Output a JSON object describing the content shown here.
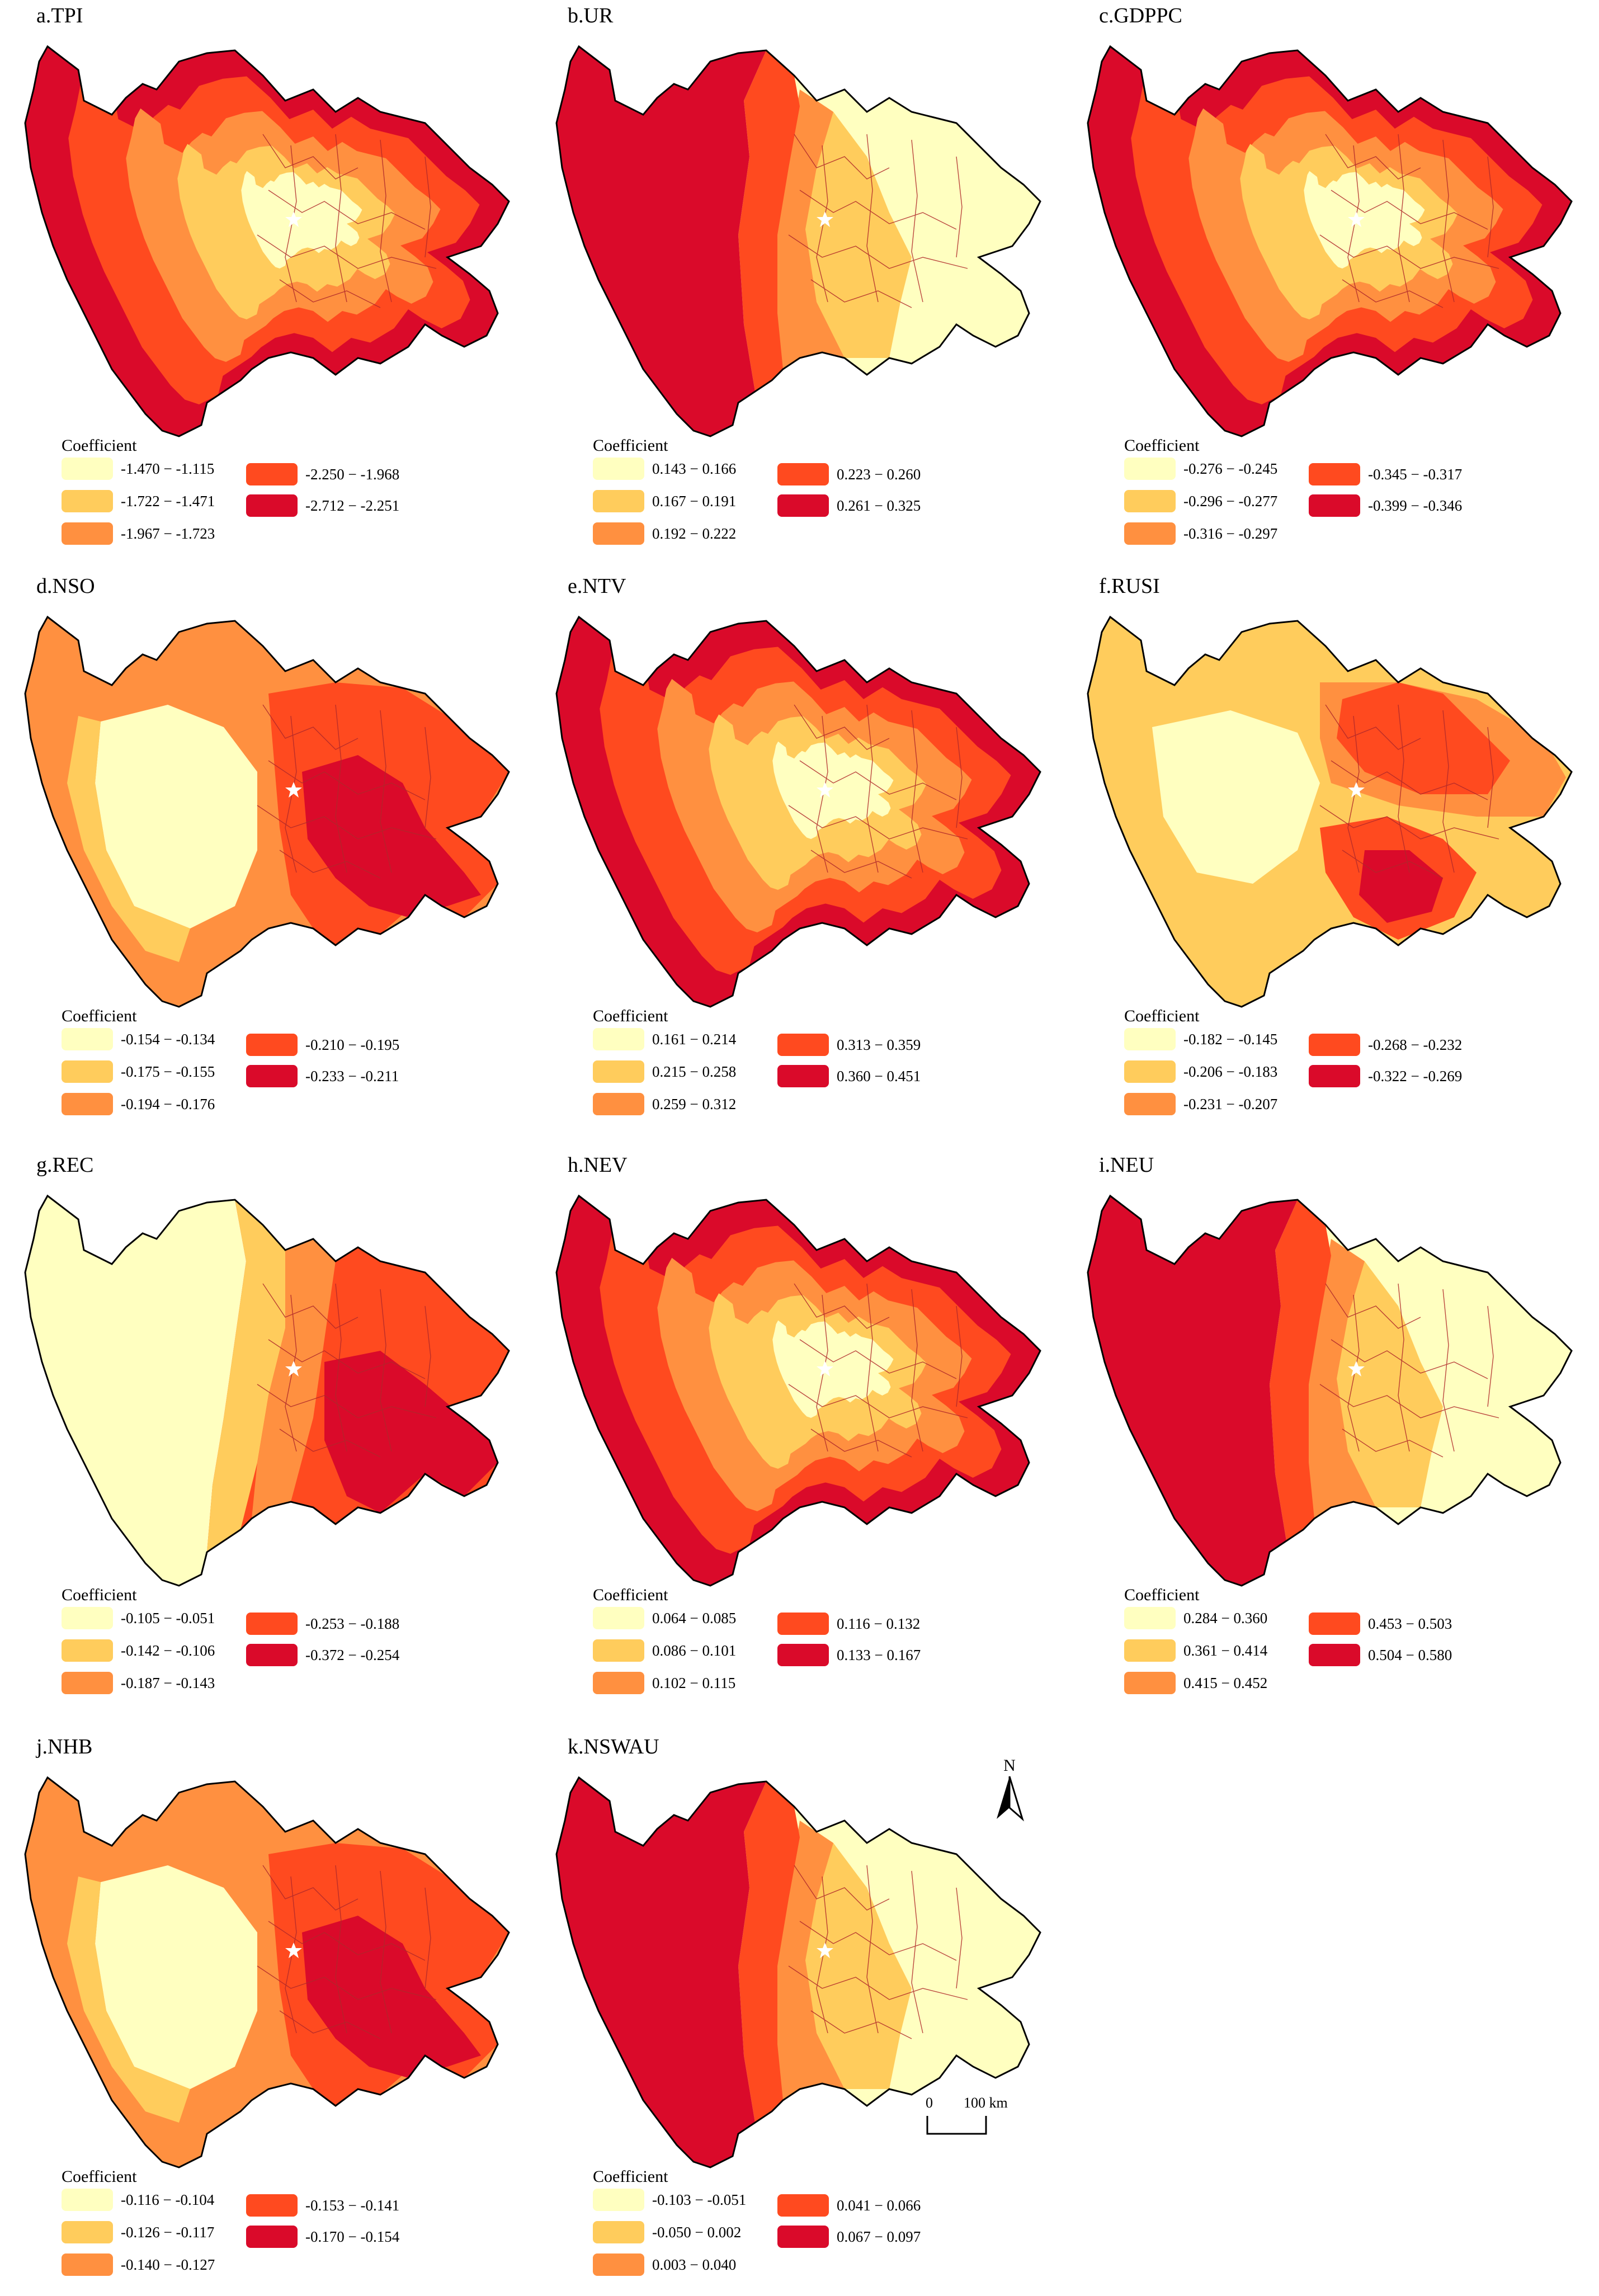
{
  "legend_title": "Coefficient",
  "colors": {
    "class_1": "#FFFFC0",
    "class_2": "#FFCC5C",
    "class_3": "#FF9040",
    "class_4": "#FF4A1F",
    "class_5": "#DA0A2A",
    "boundary": "#000000",
    "inner_boundary": "#B0282A",
    "capital_marker": "#FFFFFF"
  },
  "panels": [
    {
      "title": "a.TPI",
      "classes": [
        "-1.470 − -1.115",
        "-1.722 − -1.471",
        "-1.967 − -1.723",
        "-2.250 − -1.968",
        "-2.712 − -2.251"
      ],
      "pattern": "west-high"
    },
    {
      "title": "b.UR",
      "classes": [
        "0.143 − 0.166",
        "0.167 − 0.191",
        "0.192 − 0.222",
        "0.223 − 0.260",
        "0.261 − 0.325"
      ],
      "pattern": "west-strong"
    },
    {
      "title": "c.GDPPC",
      "classes": [
        "-0.276 − -0.245",
        "-0.296 − -0.277",
        "-0.316 − -0.297",
        "-0.345 − -0.317",
        "-0.399 − -0.346"
      ],
      "pattern": "west-high"
    },
    {
      "title": "d.NSO",
      "classes": [
        "-0.154 − -0.134",
        "-0.175 − -0.155",
        "-0.194 − -0.176",
        "-0.210 − -0.195",
        "-0.233 − -0.211"
      ],
      "pattern": "southeast-high"
    },
    {
      "title": "e.NTV",
      "classes": [
        "0.161 − 0.214",
        "0.215 − 0.258",
        "0.259 − 0.312",
        "0.313 − 0.359",
        "0.360 − 0.451"
      ],
      "pattern": "edges-high"
    },
    {
      "title": "f.RUSI",
      "classes": [
        "-0.182 − -0.145",
        "-0.206 − -0.183",
        "-0.231 − -0.207",
        "-0.268 − -0.232",
        "-0.322 − -0.269"
      ],
      "pattern": "center-south-high"
    },
    {
      "title": "g.REC",
      "classes": [
        "-0.105 − -0.051",
        "-0.142 − -0.106",
        "-0.187 − -0.143",
        "-0.253 − -0.188",
        "-0.372 − -0.254"
      ],
      "pattern": "east-high"
    },
    {
      "title": "h.NEV",
      "classes": [
        "0.064 − 0.085",
        "0.086 − 0.101",
        "0.102 − 0.115",
        "0.116 − 0.132",
        "0.133 − 0.167"
      ],
      "pattern": "edges-high"
    },
    {
      "title": "i.NEU",
      "classes": [
        "0.284 − 0.360",
        "0.361 − 0.414",
        "0.415 − 0.452",
        "0.453 − 0.503",
        "0.504 − 0.580"
      ],
      "pattern": "west-strong"
    },
    {
      "title": "j.NHB",
      "classes": [
        "-0.116 − -0.104",
        "-0.126 − -0.117",
        "-0.140 − -0.127",
        "-0.153 − -0.141",
        "-0.170 − -0.154"
      ],
      "pattern": "southeast-high"
    },
    {
      "title": "k.NSWAU",
      "classes": [
        "-0.103 − -0.051",
        "-0.050 − 0.002",
        "0.003 − 0.040",
        "0.041 − 0.066",
        "0.067 − 0.097"
      ],
      "pattern": "west-strong"
    }
  ],
  "north_arrow": {
    "label": "N"
  },
  "scale_bar": {
    "start": "0",
    "end": "100 km"
  }
}
